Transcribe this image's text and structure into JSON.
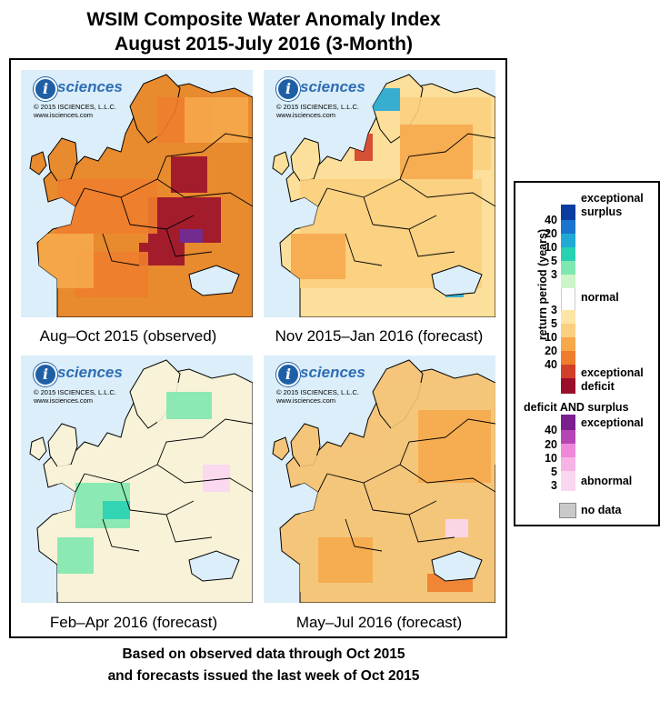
{
  "title": {
    "line1": "WSIM Composite Water Anomaly Index",
    "line2": "August 2015-July 2016 (3-Month)"
  },
  "panels": [
    {
      "caption": "Aug–Oct 2015 (observed)",
      "logo_word": "sciences",
      "logo_copyright": "© 2015 ISCIENCES, L.L.C.",
      "logo_url": "www.isciences.com",
      "dominant_color": "#e88a2e"
    },
    {
      "caption": "Nov 2015–Jan 2016 (forecast)",
      "logo_word": "sciences",
      "logo_copyright": "© 2015 ISCIENCES, L.L.C.",
      "logo_url": "www.isciences.com",
      "dominant_color": "#fbdf9a"
    },
    {
      "caption": "Feb–Apr 2016 (forecast)",
      "logo_word": "sciences",
      "logo_copyright": "© 2015 ISCIENCES, L.L.C.",
      "logo_url": "www.isciences.com",
      "dominant_color": "#f7f2d8"
    },
    {
      "caption": "May–Jul 2016 (forecast)",
      "logo_word": "sciences",
      "logo_copyright": "© 2015 ISCIENCES, L.L.C.",
      "logo_url": "www.isciences.com",
      "dominant_color": "#f4c57a"
    }
  ],
  "legend": {
    "axis_label": "return period (years)",
    "exceptional_surplus": [
      "exceptional",
      "surplus"
    ],
    "normal": "normal",
    "exceptional_deficit": [
      "exceptional",
      "deficit"
    ],
    "surplus_ticks": [
      "40",
      "20",
      "10",
      "5",
      "3"
    ],
    "deficit_ticks": [
      "3",
      "5",
      "10",
      "20",
      "40"
    ],
    "both_title": "deficit AND surplus",
    "both_exceptional": "exceptional",
    "both_abnormal": "abnormal",
    "both_ticks": [
      "40",
      "20",
      "10",
      "5",
      "3"
    ],
    "no_data": "no data",
    "surplus_colors": [
      "#0a3d9e",
      "#1874cd",
      "#21a9d6",
      "#29d1b3",
      "#7fe8b0",
      "#ccf5c8"
    ],
    "deficit_colors": [
      "#fde5a6",
      "#fbcf80",
      "#f6a84b",
      "#ee7d2d",
      "#d2402a",
      "#9a0f2c"
    ],
    "both_colors": [
      "#7b1f8e",
      "#b646b5",
      "#ef88da",
      "#f7b3e6",
      "#fbd6f1"
    ],
    "no_data_color": "#c9c9c9"
  },
  "footer": {
    "line1": "Based on observed data through Oct 2015",
    "line2": "and forecasts issued the last week of Oct 2015"
  }
}
